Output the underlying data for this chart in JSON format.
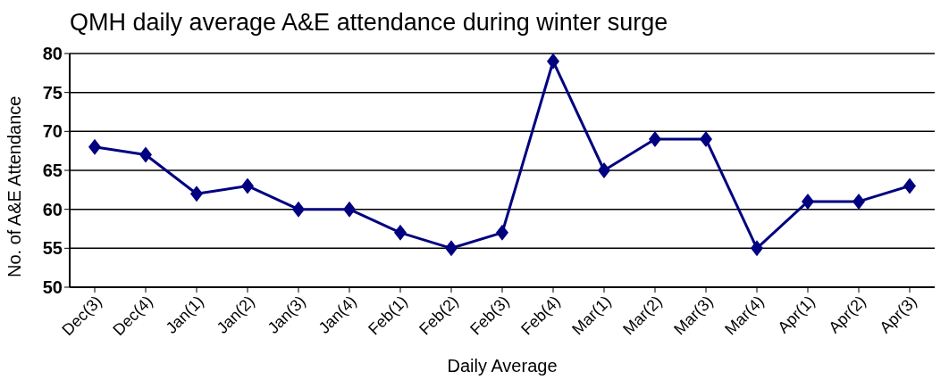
{
  "chart_data": {
    "type": "line",
    "title": "QMH daily average A&E attendance during winter surge",
    "xlabel": "Daily Average",
    "ylabel": "No. of A&E Attendance",
    "categories": [
      "Dec(3)",
      "Dec(4)",
      "Jan(1)",
      "Jan(2)",
      "Jan(3)",
      "Jan(4)",
      "Feb(1)",
      "Feb(2)",
      "Feb(3)",
      "Feb(4)",
      "Mar(1)",
      "Mar(2)",
      "Mar(3)",
      "Mar(4)",
      "Apr(1)",
      "Apr(2)",
      "Apr(3)"
    ],
    "series": [
      {
        "color": "#000080",
        "values": [
          68,
          67,
          62,
          63,
          60,
          60,
          57,
          55,
          57,
          79,
          65,
          69,
          69,
          55,
          61,
          61,
          63
        ]
      }
    ],
    "ylim": [
      50,
      80
    ],
    "yticks": [
      50,
      55,
      60,
      65,
      70,
      75,
      80
    ],
    "grid": "y",
    "legend": false,
    "marker": "diamond",
    "line_style": "solid"
  }
}
